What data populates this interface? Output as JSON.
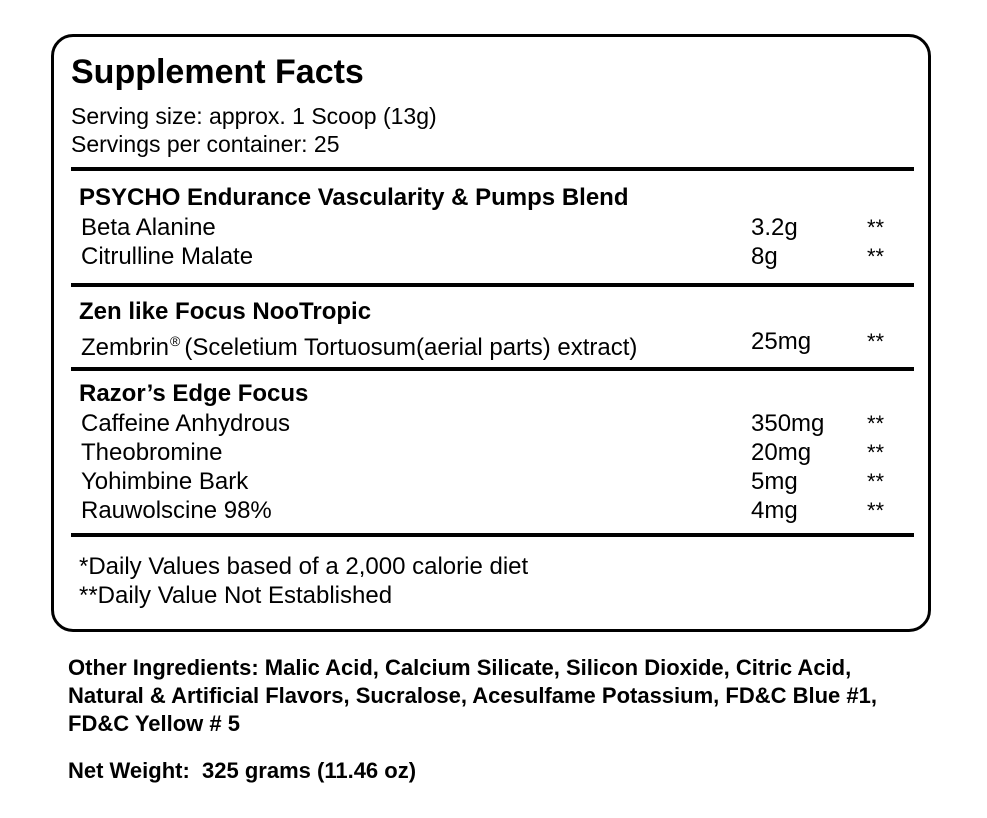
{
  "label": {
    "title": "Supplement Facts",
    "serving_size": "Serving size: approx. 1 Scoop (13g)",
    "servings_per_container": "Servings per container: 25"
  },
  "sections": [
    {
      "title": "PSYCHO Endurance Vascularity & Pumps Blend",
      "items": [
        {
          "name": "Beta Alanine",
          "amount": "3.2g",
          "dv": "**"
        },
        {
          "name": "Citrulline Malate",
          "amount": "8g",
          "dv": "**"
        }
      ]
    },
    {
      "title": "Zen like Focus NooTropic",
      "items": [
        {
          "name": "Zembrin",
          "mark": "®",
          "name_rest": "(Sceletium Tortuosum(aerial parts) extract)",
          "amount": "25mg",
          "dv": "**"
        }
      ]
    },
    {
      "title": "Razor’s Edge Focus",
      "items": [
        {
          "name": "Caffeine Anhydrous",
          "amount": "350mg",
          "dv": "**"
        },
        {
          "name": "Theobromine",
          "amount": "20mg",
          "dv": "**"
        },
        {
          "name": "Yohimbine Bark",
          "amount": "5mg",
          "dv": "**"
        },
        {
          "name": "Rauwolscine 98%",
          "amount": "4mg",
          "dv": "**"
        }
      ]
    }
  ],
  "footnotes": [
    "*Daily Values based of a 2,000 calorie diet",
    "**Daily Value Not Established"
  ],
  "other_ingredients": "Other Ingredients: Malic Acid, Calcium Silicate, Silicon Dioxide, Citric Acid, Natural & Artificial Flavors, Sucralose, Acesulfame Potassium, FD&C Blue #1, FD&C Yellow # 5",
  "net_weight": "Net Weight:  325 grams (11.46 oz)"
}
